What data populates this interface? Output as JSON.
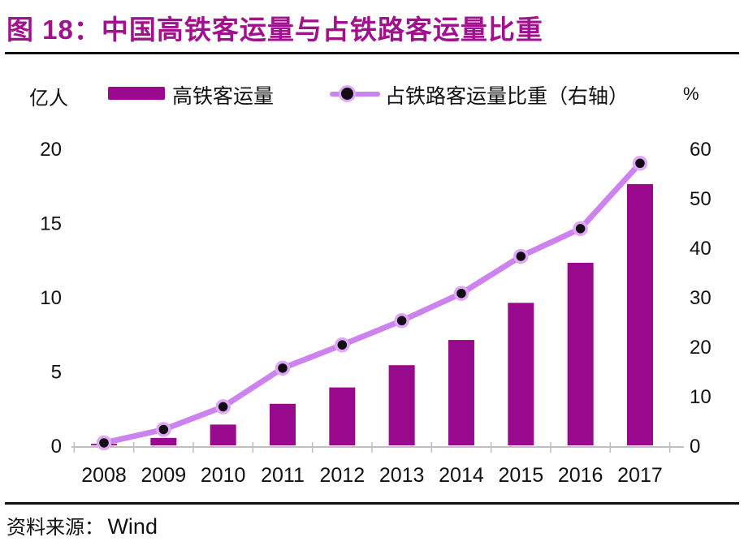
{
  "header": {
    "title": "图 18：中国高铁客运量与占铁路客运量比重"
  },
  "legend": {
    "bar_label": "高铁客运量",
    "line_label": "占铁路客运量比重（右轴）"
  },
  "axes": {
    "left_unit": "亿人",
    "right_unit": "%"
  },
  "footer": {
    "source_label": "资料来源：",
    "source_value": "Wind"
  },
  "colors": {
    "title": "#A1118D",
    "bar": "#98098E",
    "line": "#CC82EF",
    "dot_fill": "#140C14",
    "dot_halo": "#DFA8F7",
    "axis": "#BFBFBF",
    "text": "#111111"
  },
  "chart_data": {
    "type": "bar",
    "title": "中国高铁客运量与占铁路客运量比重",
    "categories": [
      "2008",
      "2009",
      "2010",
      "2011",
      "2012",
      "2013",
      "2014",
      "2015",
      "2016",
      "2017"
    ],
    "series": [
      {
        "name": "高铁客运量",
        "type": "bar",
        "axis": "left",
        "values": [
          0.1,
          0.5,
          1.4,
          2.8,
          3.9,
          5.4,
          7.1,
          9.6,
          12.3,
          17.6
        ]
      },
      {
        "name": "占铁路客运量比重（右轴）",
        "type": "line",
        "axis": "right",
        "values": [
          0.5,
          3.2,
          7.8,
          15.6,
          20.3,
          25.2,
          30.7,
          38.2,
          43.8,
          57.0
        ]
      }
    ],
    "left_axis": {
      "label": "亿人",
      "range": [
        0,
        20
      ],
      "ticks": [
        0,
        5,
        10,
        15,
        20
      ]
    },
    "right_axis": {
      "label": "%",
      "range": [
        0,
        60
      ],
      "ticks": [
        0,
        10,
        20,
        30,
        40,
        50,
        60
      ]
    },
    "grid": false,
    "legend_position": "top"
  }
}
